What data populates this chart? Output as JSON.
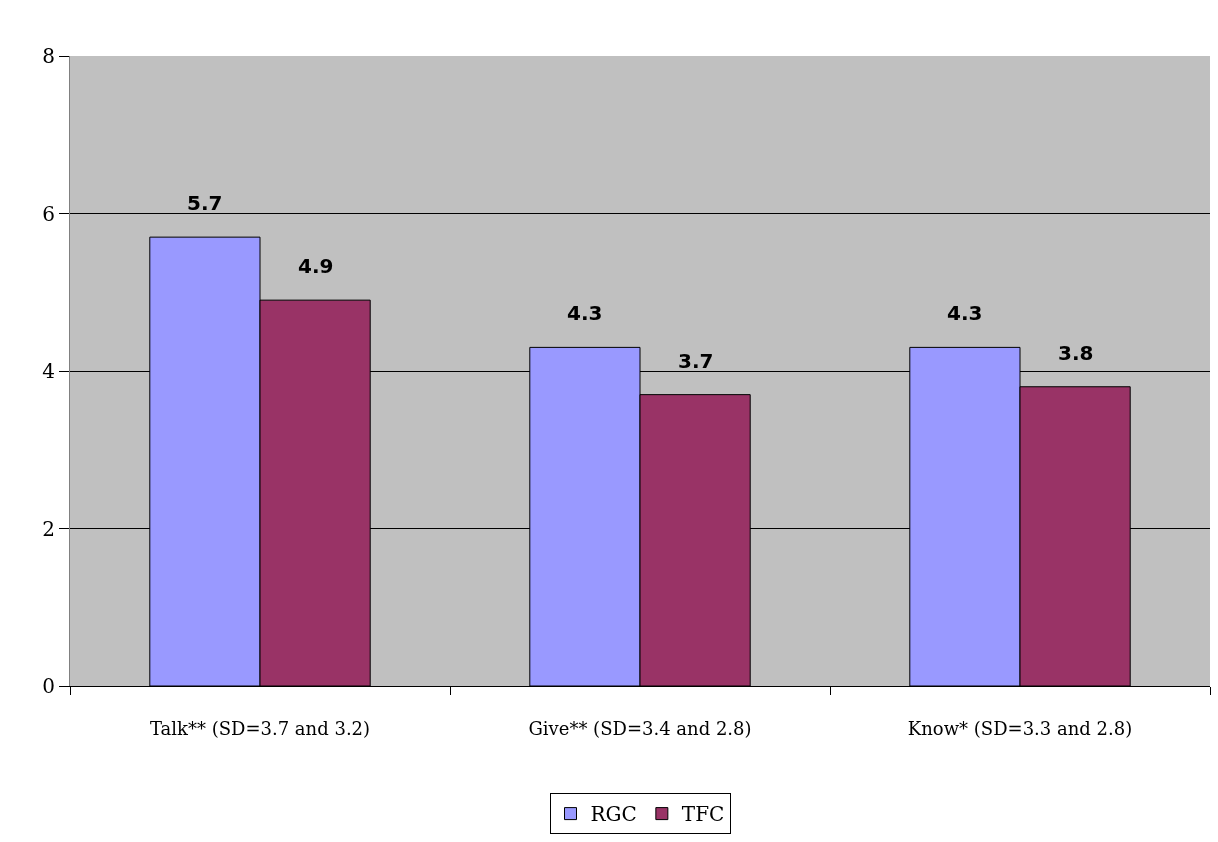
{
  "chart_data": {
    "type": "bar",
    "categories": [
      "Talk** (SD=3.7 and 3.2)",
      "Give** (SD=3.4 and 2.8)",
      "Know* (SD=3.3 and 2.8)"
    ],
    "series": [
      {
        "name": "RGC",
        "color": "#9999ff",
        "values": [
          5.7,
          4.3,
          4.3
        ]
      },
      {
        "name": "TFC",
        "color": "#993366",
        "values": [
          4.9,
          3.7,
          3.8
        ]
      }
    ],
    "ylim": [
      0,
      8
    ],
    "yticks": [
      0,
      2,
      4,
      6,
      8
    ],
    "grid": "y",
    "legend": "bottom",
    "data_labels": true
  }
}
